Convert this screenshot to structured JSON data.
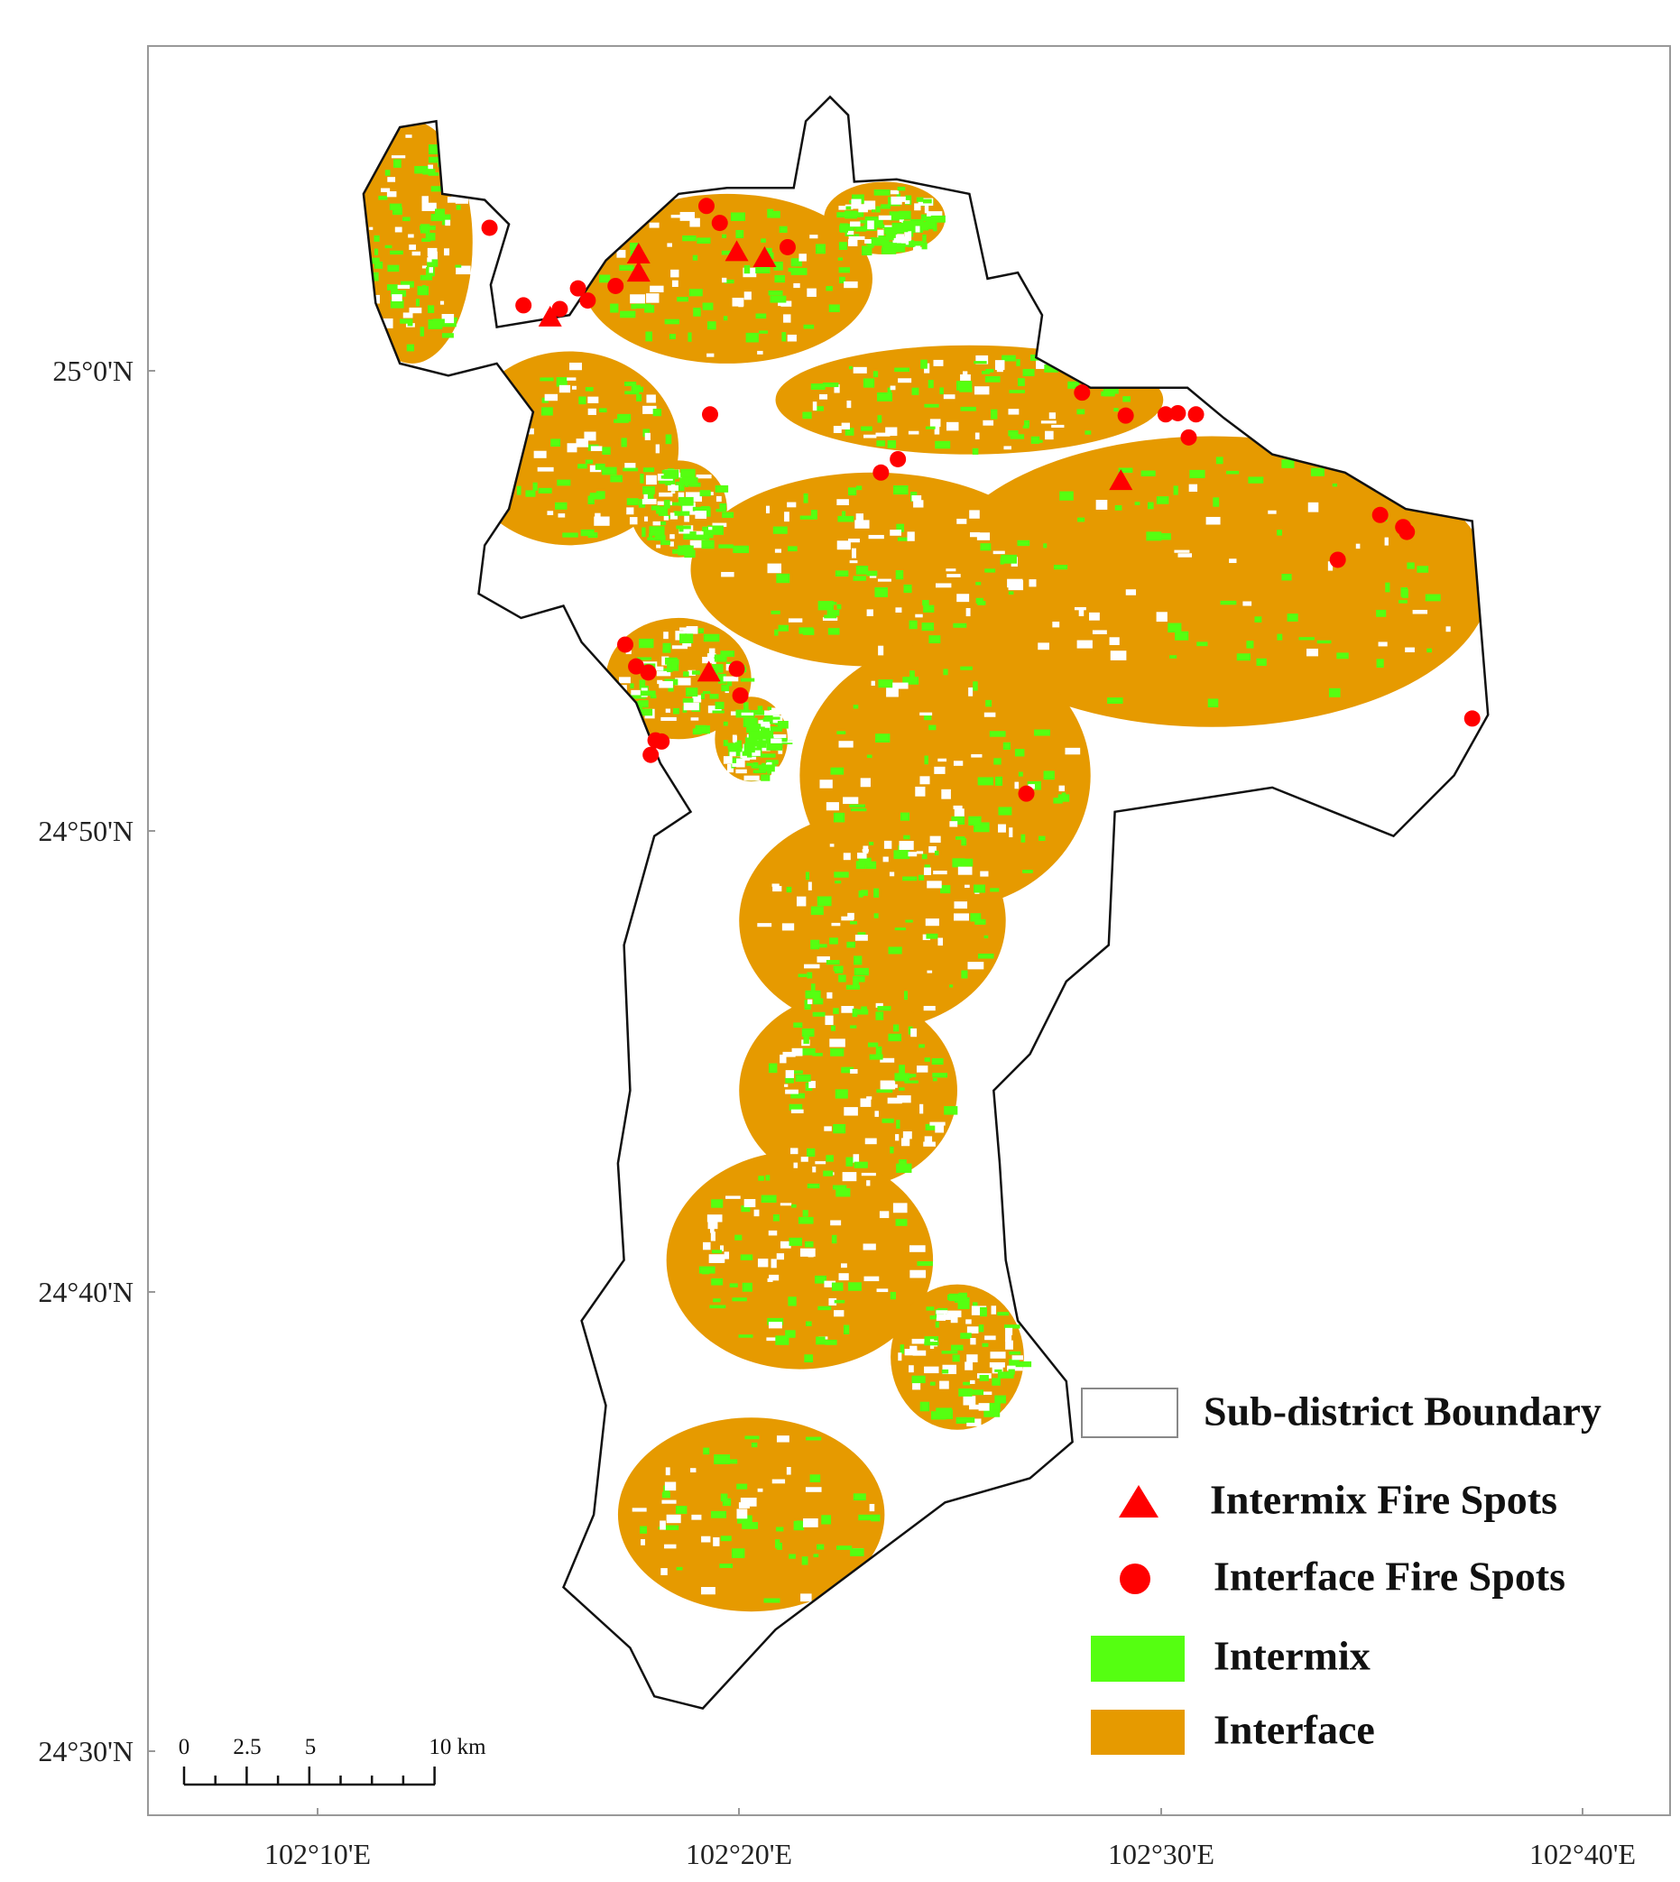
{
  "map": {
    "latitude_labels": [
      "25°0'N",
      "24°50'N",
      "24°40'N",
      "24°30'N"
    ],
    "longitude_labels": [
      "102°10'E",
      "102°20'E",
      "102°30'E",
      "102°40'E"
    ],
    "legend": {
      "boundary": "Sub-district Boundary",
      "intermix_fire": "Intermix Fire Spots",
      "interface_fire": "Interface Fire Spots",
      "intermix": "Intermix",
      "interface": "Interface"
    },
    "scale_bar": {
      "labels": [
        "0",
        "2.5",
        "5",
        "10 km"
      ]
    }
  }
}
